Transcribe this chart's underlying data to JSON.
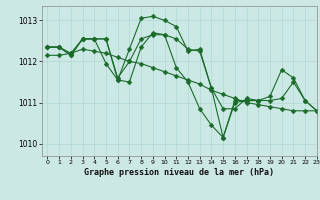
{
  "title": "Graphe pression niveau de la mer (hPa)",
  "bg_color": "#cce8e4",
  "line_color": "#1a6b2a",
  "marker": "D",
  "marker_size": 2.5,
  "line_width": 0.8,
  "xlim": [
    -0.5,
    23
  ],
  "ylim": [
    1009.7,
    1013.35
  ],
  "yticks": [
    1010,
    1011,
    1012,
    1013
  ],
  "xticks": [
    0,
    1,
    2,
    3,
    4,
    5,
    6,
    7,
    8,
    9,
    10,
    11,
    12,
    13,
    14,
    15,
    16,
    17,
    18,
    19,
    20,
    21,
    22,
    23
  ],
  "series": [
    [
      1012.35,
      1012.35,
      1012.2,
      1012.55,
      1012.55,
      1012.55,
      1011.6,
      1012.0,
      1012.55,
      1012.65,
      1012.65,
      1012.55,
      1012.3,
      1012.25,
      1011.35,
      1010.85,
      1010.85,
      1011.1,
      1011.05,
      1011.15,
      1011.8,
      1011.6,
      1011.05,
      1010.8
    ],
    [
      1012.35,
      1012.35,
      1012.15,
      1012.55,
      1012.55,
      1011.95,
      1011.55,
      1012.3,
      1013.05,
      1013.1,
      1013.0,
      1012.85,
      1012.25,
      1012.3,
      1011.35,
      1010.15,
      1011.05,
      1011.05,
      1011.05,
      null,
      null,
      null,
      null,
      null
    ],
    [
      1012.35,
      1012.35,
      1012.15,
      1012.55,
      1012.55,
      1012.55,
      1011.55,
      1011.5,
      1012.35,
      1012.7,
      1012.65,
      1011.85,
      1011.5,
      1010.85,
      1010.45,
      1010.15,
      1011.0,
      1011.05,
      1011.05,
      1011.05,
      1011.1,
      1011.5,
      1011.05,
      1010.8
    ],
    [
      1012.15,
      1012.15,
      1012.2,
      1012.3,
      1012.25,
      1012.2,
      1012.1,
      1012.0,
      1011.95,
      1011.85,
      1011.75,
      1011.65,
      1011.55,
      1011.45,
      1011.3,
      1011.2,
      1011.1,
      1011.0,
      1010.95,
      1010.9,
      1010.85,
      1010.8,
      1010.8,
      1010.8
    ]
  ]
}
